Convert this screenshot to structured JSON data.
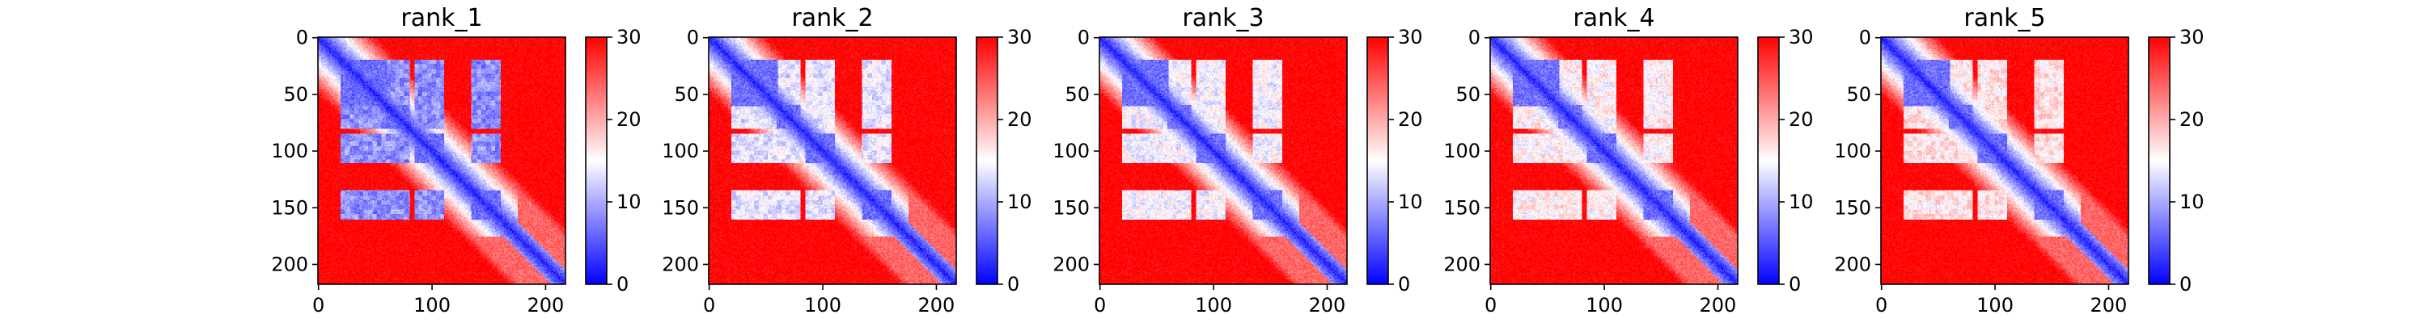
{
  "colors": {
    "low": "#0000ff",
    "mid": "#ffffff",
    "high": "#ff0000"
  },
  "chart_data": [
    {
      "type": "heatmap",
      "title": "rank_1",
      "size": 218,
      "xticks": [
        0,
        100,
        200
      ],
      "yticks": [
        0,
        50,
        100,
        150,
        200
      ],
      "clim": [
        0,
        30
      ],
      "cbar_ticks": [
        0,
        10,
        20,
        30
      ],
      "colormap": "bwr",
      "description": "pairwise distance (PAE-style) matrix, low values along diagonal",
      "blue_blocks": [
        [
          20,
          60
        ],
        [
          60,
          80
        ],
        [
          85,
          110
        ],
        [
          135,
          160
        ]
      ],
      "variant": 1
    },
    {
      "type": "heatmap",
      "title": "rank_2",
      "size": 218,
      "xticks": [
        0,
        100,
        200
      ],
      "yticks": [
        0,
        50,
        100,
        150,
        200
      ],
      "clim": [
        0,
        30
      ],
      "cbar_ticks": [
        0,
        10,
        20,
        30
      ],
      "colormap": "bwr",
      "blue_blocks": [
        [
          20,
          60
        ],
        [
          60,
          80
        ],
        [
          85,
          110
        ],
        [
          135,
          160
        ]
      ],
      "variant": 2
    },
    {
      "type": "heatmap",
      "title": "rank_3",
      "size": 218,
      "xticks": [
        0,
        100,
        200
      ],
      "yticks": [
        0,
        50,
        100,
        150,
        200
      ],
      "clim": [
        0,
        30
      ],
      "cbar_ticks": [
        0,
        10,
        20,
        30
      ],
      "colormap": "bwr",
      "blue_blocks": [
        [
          20,
          60
        ],
        [
          60,
          80
        ],
        [
          85,
          110
        ],
        [
          135,
          160
        ]
      ],
      "variant": 3
    },
    {
      "type": "heatmap",
      "title": "rank_4",
      "size": 218,
      "xticks": [
        0,
        100,
        200
      ],
      "yticks": [
        0,
        50,
        100,
        150,
        200
      ],
      "clim": [
        0,
        30
      ],
      "cbar_ticks": [
        0,
        10,
        20,
        30
      ],
      "colormap": "bwr",
      "blue_blocks": [
        [
          20,
          60
        ],
        [
          60,
          80
        ],
        [
          85,
          110
        ],
        [
          135,
          160
        ]
      ],
      "variant": 4
    },
    {
      "type": "heatmap",
      "title": "rank_5",
      "size": 218,
      "xticks": [
        0,
        100,
        200
      ],
      "yticks": [
        0,
        50,
        100,
        150,
        200
      ],
      "clim": [
        0,
        30
      ],
      "cbar_ticks": [
        0,
        10,
        20,
        30
      ],
      "colormap": "bwr",
      "blue_blocks": [
        [
          20,
          60
        ],
        [
          60,
          80
        ],
        [
          85,
          110
        ],
        [
          135,
          160
        ]
      ],
      "variant": 5
    }
  ]
}
